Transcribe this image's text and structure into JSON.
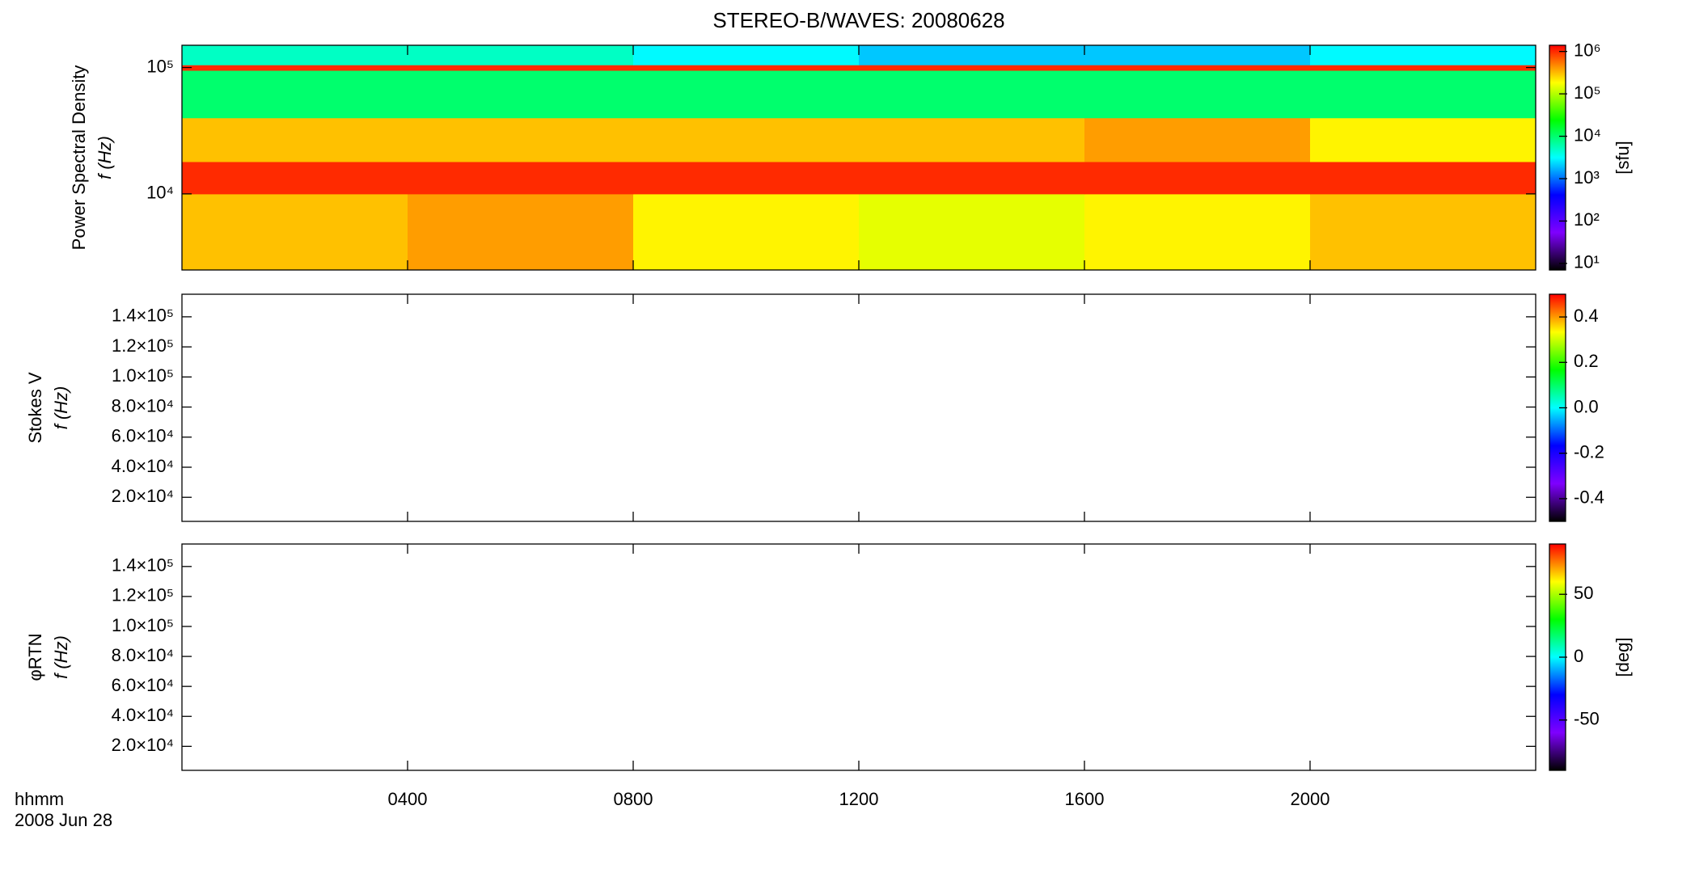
{
  "chart_data": [
    {
      "type": "heatmap",
      "title": "STEREO-B/WAVES: 20080628",
      "ylabel": [
        "Power Spectral Density",
        "f (Hz)"
      ],
      "xlim": [
        0,
        24
      ],
      "ylim": [
        2500,
        150000
      ],
      "ylog": true,
      "yticks": [
        {
          "value": 10000,
          "label": "10⁴"
        },
        {
          "value": 100000,
          "label": "10⁵"
        }
      ],
      "x_edges": [
        0,
        4,
        8,
        12,
        16,
        20,
        24
      ],
      "y_edges": [
        2500,
        10000,
        18000,
        40000,
        95000,
        105000,
        150000
      ],
      "z": [
        [
          300000,
          400000,
          200000,
          150000,
          200000,
          300000
        ],
        [
          1000000,
          1000000,
          1000000,
          1000000,
          1000000,
          1000000
        ],
        [
          300000,
          300000,
          300000,
          300000,
          400000,
          200000
        ],
        [
          10000,
          10000,
          10000,
          10000,
          10000,
          10000
        ],
        [
          1000000,
          1000000,
          1000000,
          1000000,
          1000000,
          1000000
        ],
        [
          5000,
          5000,
          3000,
          2000,
          2000,
          3000
        ]
      ],
      "colormap": [
        "#000000",
        "#7f00ff",
        "#0000ff",
        "#00ffff",
        "#00ff00",
        "#ffff00",
        "#ff0000"
      ],
      "colorbar": {
        "lim": [
          7,
          1400000
        ],
        "log": true,
        "label": "[sfu]",
        "ticks": [
          {
            "value": 10,
            "label": "10¹"
          },
          {
            "value": 100,
            "label": "10²"
          },
          {
            "value": 1000,
            "label": "10³"
          },
          {
            "value": 10000,
            "label": "10⁴"
          },
          {
            "value": 100000,
            "label": "10⁵"
          },
          {
            "value": 1000000,
            "label": "10⁶"
          }
        ]
      }
    },
    {
      "type": "heatmap",
      "ylabel": [
        "Stokes V",
        "f (Hz)"
      ],
      "xlim": [
        0,
        24
      ],
      "ylim": [
        4000,
        155000
      ],
      "ylog": false,
      "yticks": [
        {
          "value": 20000,
          "label": "2.0×10⁴"
        },
        {
          "value": 40000,
          "label": "4.0×10⁴"
        },
        {
          "value": 60000,
          "label": "6.0×10⁴"
        },
        {
          "value": 80000,
          "label": "8.0×10⁴"
        },
        {
          "value": 100000,
          "label": "1.0×10⁵"
        },
        {
          "value": 120000,
          "label": "1.2×10⁵"
        },
        {
          "value": 140000,
          "label": "1.4×10⁵"
        }
      ],
      "colormap": [
        "#000000",
        "#7f00ff",
        "#0000ff",
        "#00ffff",
        "#00ff00",
        "#ffff00",
        "#ff0000"
      ],
      "colorbar": {
        "lim": [
          -0.5,
          0.5
        ],
        "log": false,
        "ticks": [
          -0.4,
          -0.2,
          {
            "value": 0,
            "label": "0.0"
          },
          0.2,
          0.4
        ]
      }
    },
    {
      "type": "heatmap",
      "ylabel": [
        "φRTN",
        "f (Hz)"
      ],
      "xlim": [
        0,
        24
      ],
      "ylim": [
        4000,
        155000
      ],
      "ylog": false,
      "yticks": [
        {
          "value": 20000,
          "label": "2.0×10⁴"
        },
        {
          "value": 40000,
          "label": "4.0×10⁴"
        },
        {
          "value": 60000,
          "label": "6.0×10⁴"
        },
        {
          "value": 80000,
          "label": "8.0×10⁴"
        },
        {
          "value": 100000,
          "label": "1.0×10⁵"
        },
        {
          "value": 120000,
          "label": "1.2×10⁵"
        },
        {
          "value": 140000,
          "label": "1.4×10⁵"
        }
      ],
      "xticks": [
        {
          "value": 4,
          "label": "0400"
        },
        {
          "value": 8,
          "label": "0800"
        },
        {
          "value": 12,
          "label": "1200"
        },
        {
          "value": 16,
          "label": "1600"
        },
        {
          "value": 20,
          "label": "2000"
        }
      ],
      "xlabel": [
        "hhmm",
        "2008 Jun 28"
      ],
      "colormap": [
        "#000000",
        "#7f00ff",
        "#0000ff",
        "#00ffff",
        "#00ff00",
        "#ffff00",
        "#ff0000"
      ],
      "colorbar": {
        "lim": [
          -90,
          90
        ],
        "log": false,
        "label": "[deg]",
        "ticks": [
          -50,
          0,
          50
        ]
      }
    }
  ]
}
